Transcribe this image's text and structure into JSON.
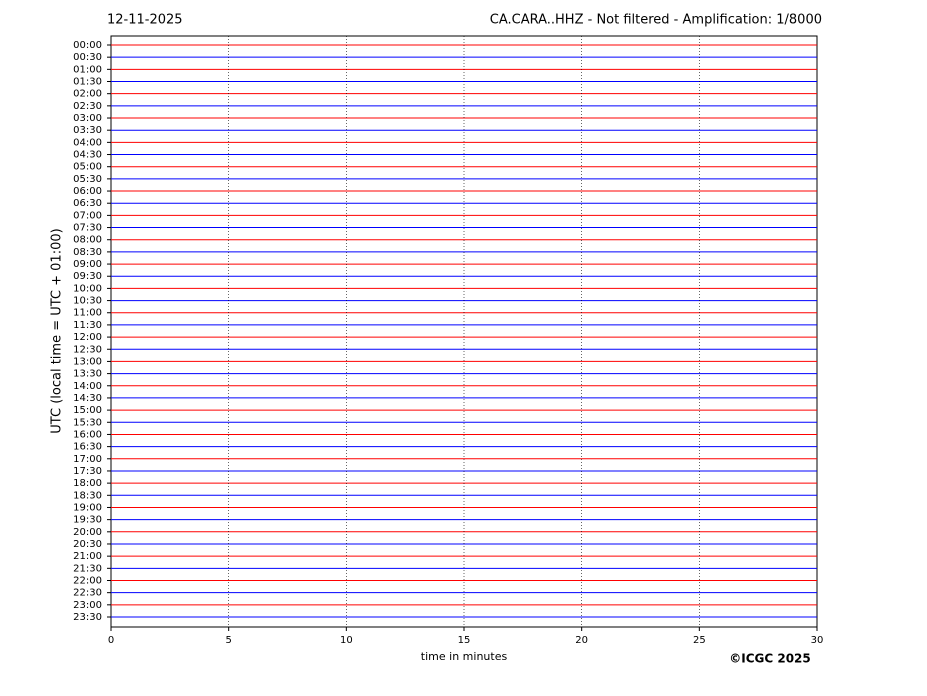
{
  "chart_data": {
    "type": "helicorder",
    "title": "12-11-2025",
    "subtitle": "CA.CARA..HHZ - Not filtered - Amplification: 1/8000",
    "xlabel": "time in minutes",
    "ylabel": "UTC (local time = UTC + 01:00)",
    "credit": "©ICGC 2025",
    "categories": [
      "00:00",
      "00:30",
      "01:00",
      "01:30",
      "02:00",
      "02:30",
      "03:00",
      "03:30",
      "04:00",
      "04:30",
      "05:00",
      "05:30",
      "06:00",
      "06:30",
      "07:00",
      "07:30",
      "08:00",
      "08:30",
      "09:00",
      "09:30",
      "10:00",
      "10:30",
      "11:00",
      "11:30",
      "12:00",
      "12:30",
      "13:00",
      "13:30",
      "14:00",
      "14:30",
      "15:00",
      "15:30",
      "16:00",
      "16:30",
      "17:00",
      "17:30",
      "18:00",
      "18:30",
      "19:00",
      "19:30",
      "20:00",
      "20:30",
      "21:00",
      "21:30",
      "22:00",
      "22:30",
      "23:00",
      "23:30"
    ],
    "colors": [
      "#ff0000",
      "#0000ff"
    ],
    "xlim": [
      0,
      30
    ],
    "xticks": [
      0,
      5,
      10,
      15,
      20,
      25,
      30
    ],
    "grid": true
  }
}
